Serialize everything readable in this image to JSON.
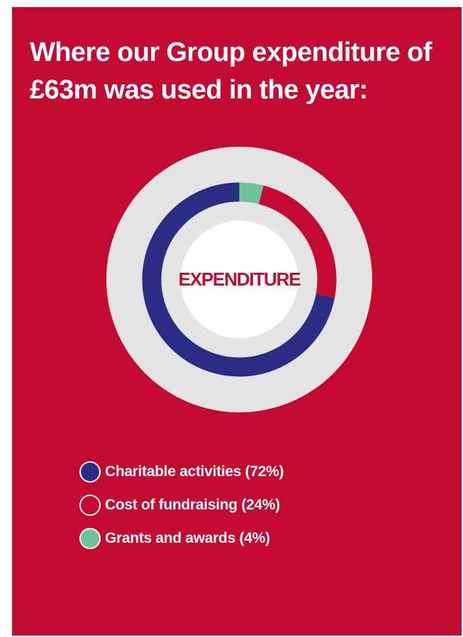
{
  "title": "Where our Group expenditure of £63m was used in the year:",
  "chart_data": {
    "type": "pie",
    "title": "Where our Group expenditure of £63m was used in the year:",
    "center_label": "EXPENDITURE",
    "series": [
      {
        "name": "Charitable activities (72%)",
        "value": 72,
        "color": "#2b2d84"
      },
      {
        "name": "Cost of fundraising (24%)",
        "value": 24,
        "color": "#c30a30"
      },
      {
        "name": "Grants and awards (4%)",
        "value": 4,
        "color": "#6cc49d"
      }
    ],
    "legend_position": "bottom-left"
  },
  "colors": {
    "background": "#c30a30",
    "outer_ring": "#e4e4e4",
    "center": "#ffffff"
  }
}
